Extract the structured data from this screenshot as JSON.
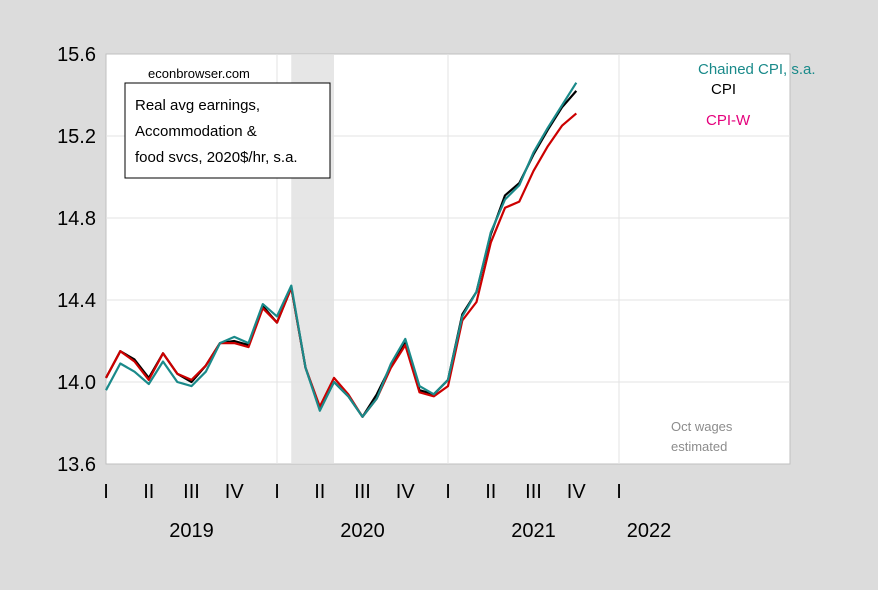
{
  "chart_data": {
    "type": "line",
    "title": "Real avg earnings, Accommodation & food svcs, 2020$/hr, s.a.",
    "title_lines": [
      "Real avg earnings,",
      "Accommodation &",
      "food svcs, 2020$/hr, s.a."
    ],
    "source": "econbrowser.com",
    "note_lines": [
      "Oct wages",
      "estimated"
    ],
    "ylim": [
      13.6,
      15.6
    ],
    "y_ticks": [
      "13.6",
      "14.0",
      "14.4",
      "14.8",
      "15.2",
      "15.6"
    ],
    "x_start": "2019-01",
    "x_quarter_labels": [
      "I",
      "II",
      "III",
      "IV",
      "I",
      "II",
      "III",
      "IV",
      "I",
      "II",
      "III",
      "IV",
      "I"
    ],
    "x_year_labels": [
      "2019",
      "2020",
      "2021",
      "2022"
    ],
    "recession": {
      "start": "2020-02",
      "end": "2020-04"
    },
    "grid": true,
    "months": [
      "2019-01",
      "2019-02",
      "2019-03",
      "2019-04",
      "2019-05",
      "2019-06",
      "2019-07",
      "2019-08",
      "2019-09",
      "2019-10",
      "2019-11",
      "2019-12",
      "2020-01",
      "2020-02",
      "2020-03",
      "2020-04",
      "2020-05",
      "2020-06",
      "2020-07",
      "2020-08",
      "2020-09",
      "2020-10",
      "2020-11",
      "2020-12",
      "2021-01",
      "2021-02",
      "2021-03",
      "2021-04",
      "2021-05",
      "2021-06",
      "2021-07",
      "2021-08",
      "2021-09",
      "2021-10"
    ],
    "series": [
      {
        "name": "Chained CPI, s.a.",
        "color": "#1a8a8a",
        "values": [
          13.96,
          14.09,
          14.05,
          13.99,
          14.1,
          14.0,
          13.98,
          14.05,
          14.19,
          14.22,
          14.19,
          14.38,
          14.32,
          14.47,
          14.07,
          13.86,
          14.0,
          13.93,
          13.83,
          13.92,
          14.09,
          14.21,
          13.98,
          13.94,
          14.01,
          14.32,
          14.44,
          14.73,
          14.89,
          14.96,
          15.12,
          15.24,
          15.35,
          15.46
        ]
      },
      {
        "name": "CPI",
        "color": "#000000",
        "values": [
          14.02,
          14.15,
          14.11,
          14.02,
          14.14,
          14.04,
          14.0,
          14.08,
          14.19,
          14.2,
          14.18,
          14.37,
          14.29,
          14.46,
          14.07,
          13.87,
          14.0,
          13.93,
          13.83,
          13.94,
          14.08,
          14.19,
          13.96,
          13.94,
          14.01,
          14.33,
          14.44,
          14.72,
          14.91,
          14.97,
          15.11,
          15.23,
          15.34,
          15.42
        ]
      },
      {
        "name": "CPI-W",
        "color": "#cc0000",
        "label_color": "#e4007c",
        "values": [
          14.02,
          14.15,
          14.1,
          14.01,
          14.14,
          14.04,
          14.01,
          14.08,
          14.19,
          14.19,
          14.17,
          14.36,
          14.29,
          14.46,
          14.07,
          13.88,
          14.02,
          13.94,
          13.83,
          13.92,
          14.07,
          14.18,
          13.95,
          13.93,
          13.98,
          14.3,
          14.39,
          14.68,
          14.85,
          14.88,
          15.03,
          15.15,
          15.25,
          15.31
        ]
      }
    ]
  }
}
